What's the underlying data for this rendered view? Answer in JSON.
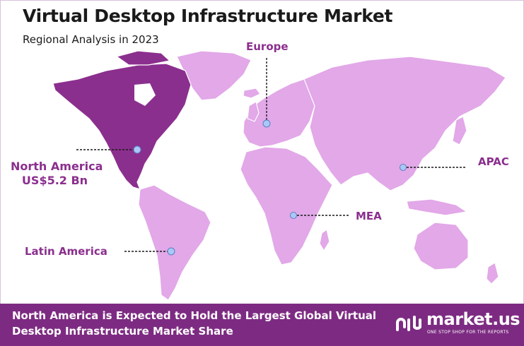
{
  "header": {
    "title": "Virtual Desktop Infrastructure Market",
    "subtitle": "Regional Analysis in 2023"
  },
  "regions": {
    "north_america": {
      "name": "North America",
      "value": "US$5.2 Bn"
    },
    "europe": {
      "name": "Europe"
    },
    "apac": {
      "name": "APAC"
    },
    "mea": {
      "name": "MEA"
    },
    "latin_america": {
      "name": "Latin America"
    }
  },
  "footer": {
    "line1": "North America is Expected to Hold the Largest Global Virtual",
    "line2": "Desktop Infrastructure Market Share"
  },
  "brand": {
    "name": "market.us",
    "tagline": "ONE STOP SHOP FOR THE REPORTS"
  },
  "colors": {
    "highlight_region": "#8b2f8e",
    "other_regions": "#e2a8e8",
    "footer_bg": "#7d2b82",
    "label_text": "#8b2f8e",
    "marker": "#a9c8f5"
  },
  "icons": [
    "market-us-logo-icon"
  ]
}
